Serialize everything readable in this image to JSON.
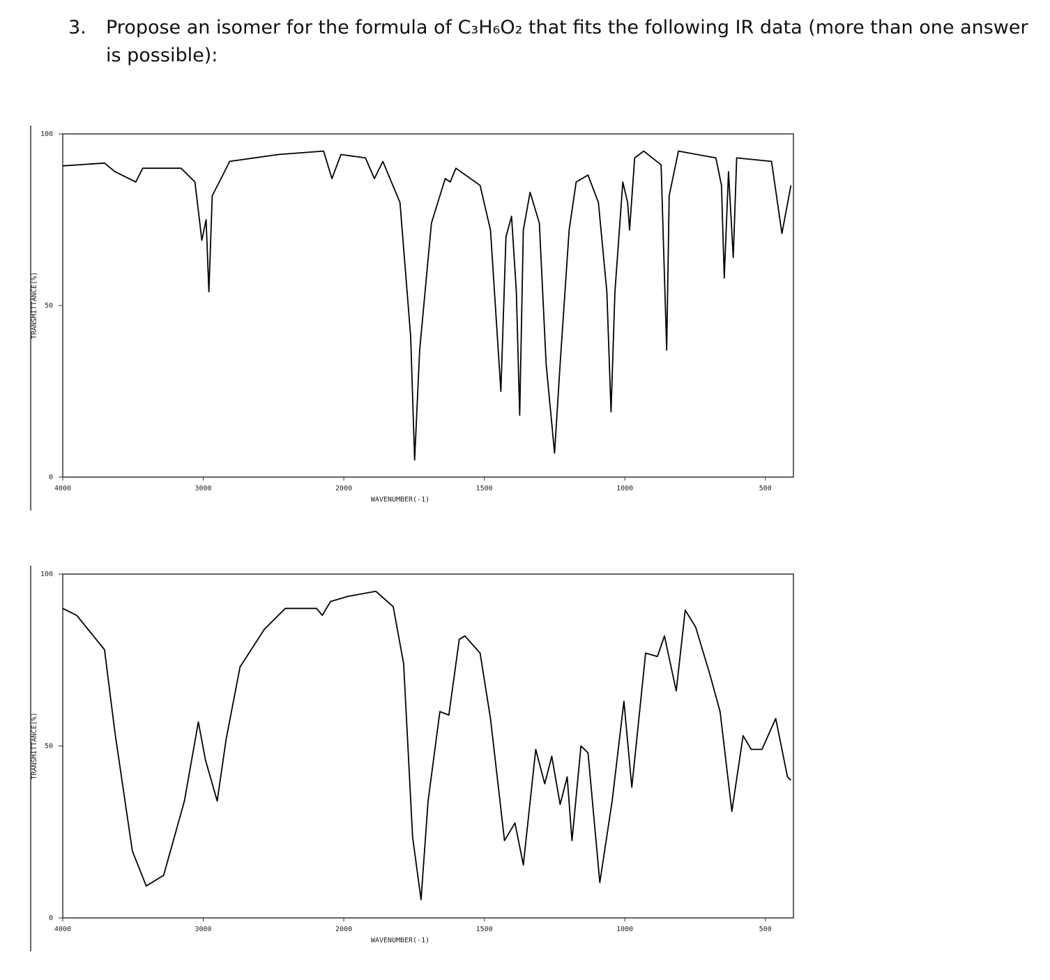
{
  "question": {
    "number": "3.",
    "text": "Propose an isomer for the formula of C₃H₆O₂ that fits the following IR data (more than one answer is possible):"
  },
  "chart_data": [
    {
      "type": "line",
      "color": "#000000",
      "x_label": "WAVENUMBER(-1)",
      "y_label": "TRANSMITTANCE(%)",
      "xlim": [
        4000,
        400
      ],
      "xticks": [
        4000,
        3000,
        2000,
        1500,
        1000,
        500
      ],
      "ylim": [
        0,
        100
      ],
      "yticks": [
        0,
        50,
        100
      ],
      "x": [
        4000,
        3703,
        3629,
        3480,
        3431,
        3158,
        3059,
        3010,
        2980,
        2960,
        2936,
        2861,
        2812,
        2465,
        2144,
        2084,
        2020,
        1923,
        1891,
        1861,
        1800,
        1762,
        1748,
        1730,
        1688,
        1639,
        1621,
        1601,
        1515,
        1478,
        1441,
        1423,
        1403,
        1386,
        1374,
        1361,
        1337,
        1304,
        1280,
        1250,
        1230,
        1198,
        1173,
        1131,
        1094,
        1064,
        1049,
        1035,
        1007,
        990,
        983,
        965,
        933,
        871,
        851,
        842,
        809,
        676,
        656,
        646,
        631,
        614,
        602,
        478,
        441,
        409
      ],
      "values": [
        90.7,
        91.5,
        89,
        86,
        90,
        90,
        86,
        69,
        75,
        54,
        82,
        88,
        92,
        94,
        95,
        87,
        94,
        93,
        87,
        92,
        80,
        41,
        5,
        37,
        74,
        87,
        86,
        90,
        85,
        72,
        25,
        70,
        76,
        54,
        18,
        72,
        83,
        74,
        33,
        7,
        33,
        72,
        86,
        88,
        80,
        54,
        19,
        54,
        86,
        80,
        72,
        93,
        95,
        91,
        37,
        82,
        95,
        93,
        85,
        58,
        89,
        64,
        93,
        92,
        71,
        85
      ]
    },
    {
      "type": "line",
      "color": "#000000",
      "x_label": "WAVENUMBER(-1)",
      "y_label": "TRANSMITTANCE(%)",
      "xlim": [
        4000,
        400
      ],
      "xticks": [
        4000,
        3000,
        2000,
        1500,
        1000,
        500
      ],
      "ylim": [
        0,
        100
      ],
      "yticks": [
        0,
        50,
        100
      ],
      "x": [
        4000,
        3901,
        3703,
        3629,
        3505,
        3406,
        3282,
        3134,
        3035,
        2985,
        2901,
        2837,
        2738,
        2564,
        2416,
        2193,
        2153,
        2094,
        1985,
        1886,
        1824,
        1787,
        1755,
        1725,
        1700,
        1658,
        1626,
        1589,
        1569,
        1515,
        1478,
        1428,
        1391,
        1361,
        1317,
        1285,
        1260,
        1230,
        1205,
        1188,
        1156,
        1131,
        1089,
        1045,
        1003,
        975,
        926,
        884,
        859,
        817,
        785,
        748,
        698,
        661,
        619,
        579,
        550,
        512,
        463,
        421,
        409
      ],
      "values": [
        90,
        88,
        78,
        54,
        19.5,
        9.3,
        12.4,
        34,
        57,
        46,
        34,
        52,
        73,
        84,
        90,
        90,
        88,
        92,
        93.5,
        95,
        90.5,
        74,
        23.5,
        5.3,
        34,
        60,
        59,
        81,
        82,
        77,
        58,
        22.5,
        27.6,
        15.4,
        49,
        39,
        47,
        33,
        41,
        22.5,
        50,
        48,
        10.3,
        34,
        63,
        38,
        77,
        76,
        82,
        66,
        89.5,
        84.6,
        71,
        60,
        31,
        53,
        49,
        49,
        58,
        41,
        40
      ]
    }
  ]
}
